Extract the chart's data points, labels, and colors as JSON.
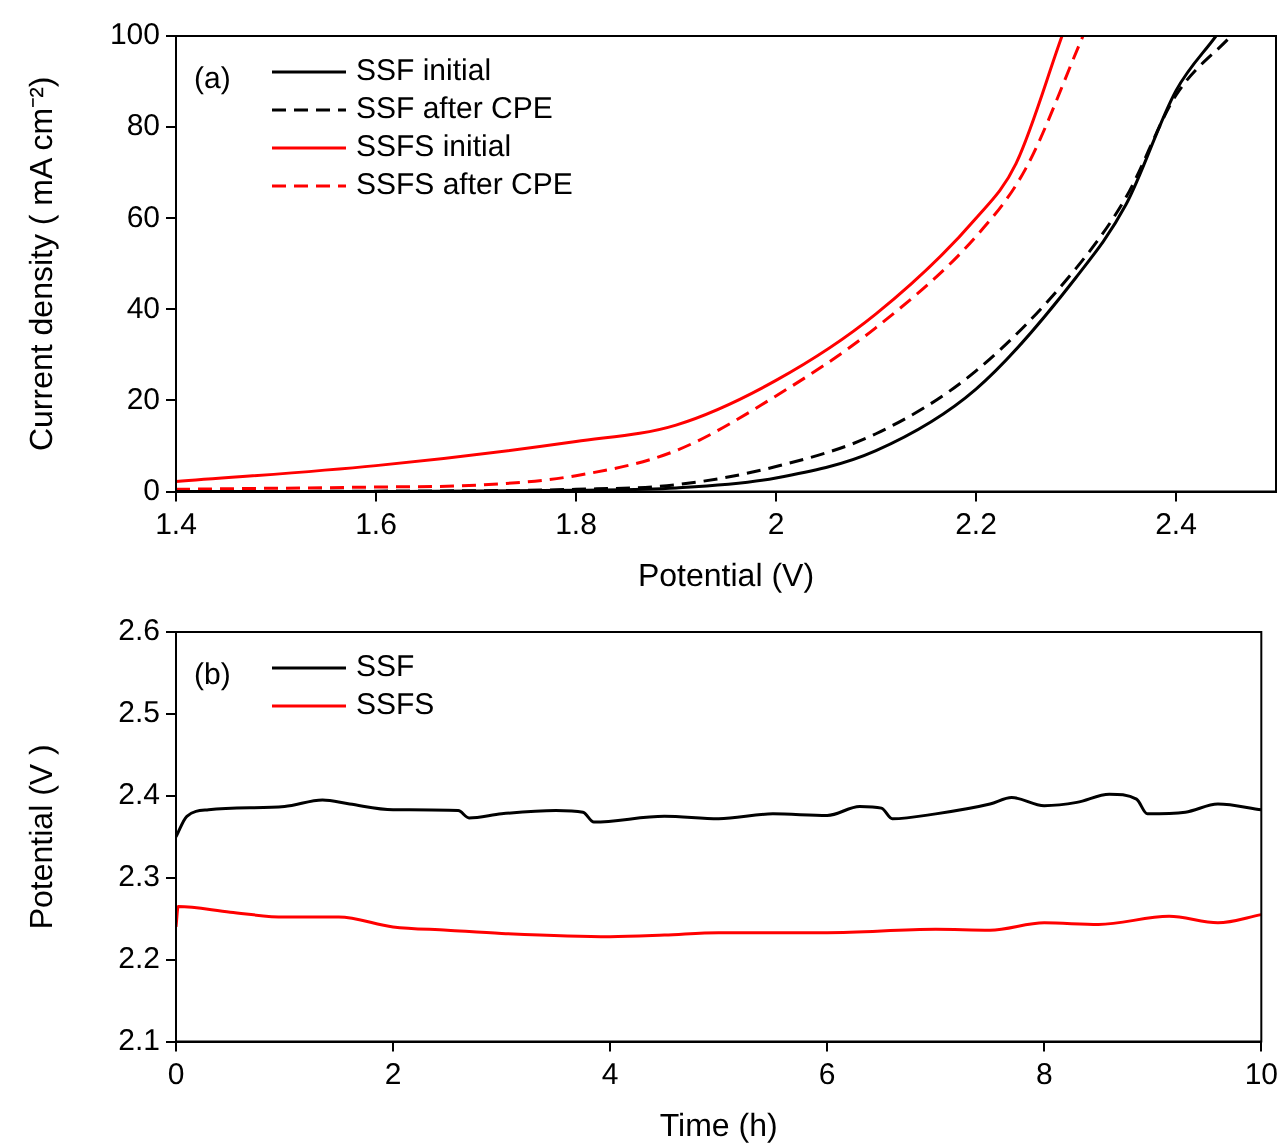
{
  "chart_data": [
    {
      "type": "line",
      "xlabel": "Potential (V)",
      "ylabel": "Current density ( mA cm⁻²)",
      "annotations": [
        "(a)"
      ],
      "legend": "top left",
      "marker": "none",
      "grid": false,
      "xlim": [
        1.4,
        2.5
      ],
      "xticks": [
        1.4,
        1.6,
        1.8,
        2.0,
        2.2,
        2.4
      ],
      "ylim": [
        0,
        100
      ],
      "yticks": [
        0,
        20,
        40,
        60,
        80,
        100
      ],
      "series": [
        {
          "name": "SSF initial",
          "color": "#000000",
          "line_style": "solid",
          "x": [
            1.4,
            1.6,
            1.8,
            1.9,
            2.0,
            2.1,
            2.2,
            2.3,
            2.35,
            2.4,
            2.44
          ],
          "values": [
            0,
            0,
            0.3,
            0.8,
            3,
            9,
            22.5,
            47,
            63,
            88,
            100
          ]
        },
        {
          "name": "SSF after CPE",
          "color": "#000000",
          "line_style": "dashed",
          "x": [
            1.4,
            1.6,
            1.8,
            1.9,
            2.0,
            2.1,
            2.2,
            2.3,
            2.35,
            2.4,
            2.455
          ],
          "values": [
            0,
            0.1,
            0.5,
            1.5,
            5.5,
            12.7,
            26.5,
            49,
            64.6,
            87,
            100
          ]
        },
        {
          "name": "SSFS initial",
          "color": "#ff0000",
          "line_style": "solid",
          "x": [
            1.4,
            1.6,
            1.8,
            1.9,
            2.0,
            2.1,
            2.2,
            2.24,
            2.286
          ],
          "values": [
            2.2,
            5.7,
            11,
            14.6,
            24.4,
            39,
            60,
            72,
            100
          ]
        },
        {
          "name": "SSFS after CPE",
          "color": "#ff0000",
          "line_style": "dashed",
          "x": [
            1.4,
            1.6,
            1.7,
            1.8,
            1.9,
            2.0,
            2.1,
            2.2,
            2.25,
            2.307
          ],
          "values": [
            0.5,
            1,
            1.4,
            3.5,
            9,
            21,
            36,
            56,
            71,
            100
          ]
        }
      ]
    },
    {
      "type": "line",
      "xlabel": "Time (h)",
      "ylabel": "Potential (V )",
      "annotations": [
        "(b)"
      ],
      "legend": "top left",
      "marker": "none",
      "grid": false,
      "xlim": [
        0,
        10
      ],
      "xticks": [
        0,
        2,
        4,
        6,
        8,
        10
      ],
      "ylim": [
        2.1,
        2.6
      ],
      "yticks": [
        2.1,
        2.2,
        2.3,
        2.4,
        2.5,
        2.6
      ],
      "series": [
        {
          "name": "SSF",
          "color": "#000000",
          "line_style": "solid",
          "x": [
            0,
            0.1,
            0.3,
            1,
            1.35,
            1.6,
            2,
            2.6,
            2.7,
            3.0,
            3.5,
            3.75,
            3.85,
            4.5,
            5,
            5.5,
            6,
            6.3,
            6.5,
            6.6,
            7,
            7.5,
            7.7,
            8,
            8.3,
            8.6,
            8.85,
            8.95,
            9.3,
            9.6,
            10
          ],
          "values": [
            2.35,
            2.375,
            2.383,
            2.387,
            2.395,
            2.39,
            2.383,
            2.382,
            2.373,
            2.378,
            2.382,
            2.38,
            2.368,
            2.375,
            2.372,
            2.378,
            2.376,
            2.387,
            2.385,
            2.372,
            2.378,
            2.39,
            2.398,
            2.388,
            2.392,
            2.402,
            2.396,
            2.378,
            2.38,
            2.39,
            2.383
          ]
        },
        {
          "name": "SSFS",
          "color": "#ff0000",
          "line_style": "solid",
          "x": [
            0,
            0.02,
            0.5,
            1,
            1.5,
            2,
            2.5,
            3,
            4,
            4.5,
            5,
            6,
            7,
            7.5,
            8,
            8.5,
            9.15,
            9.6,
            10
          ],
          "values": [
            2.24,
            2.265,
            2.258,
            2.252,
            2.252,
            2.24,
            2.236,
            2.232,
            2.228,
            2.23,
            2.233,
            2.233,
            2.237,
            2.236,
            2.245,
            2.243,
            2.253,
            2.245,
            2.255
          ]
        }
      ]
    }
  ]
}
